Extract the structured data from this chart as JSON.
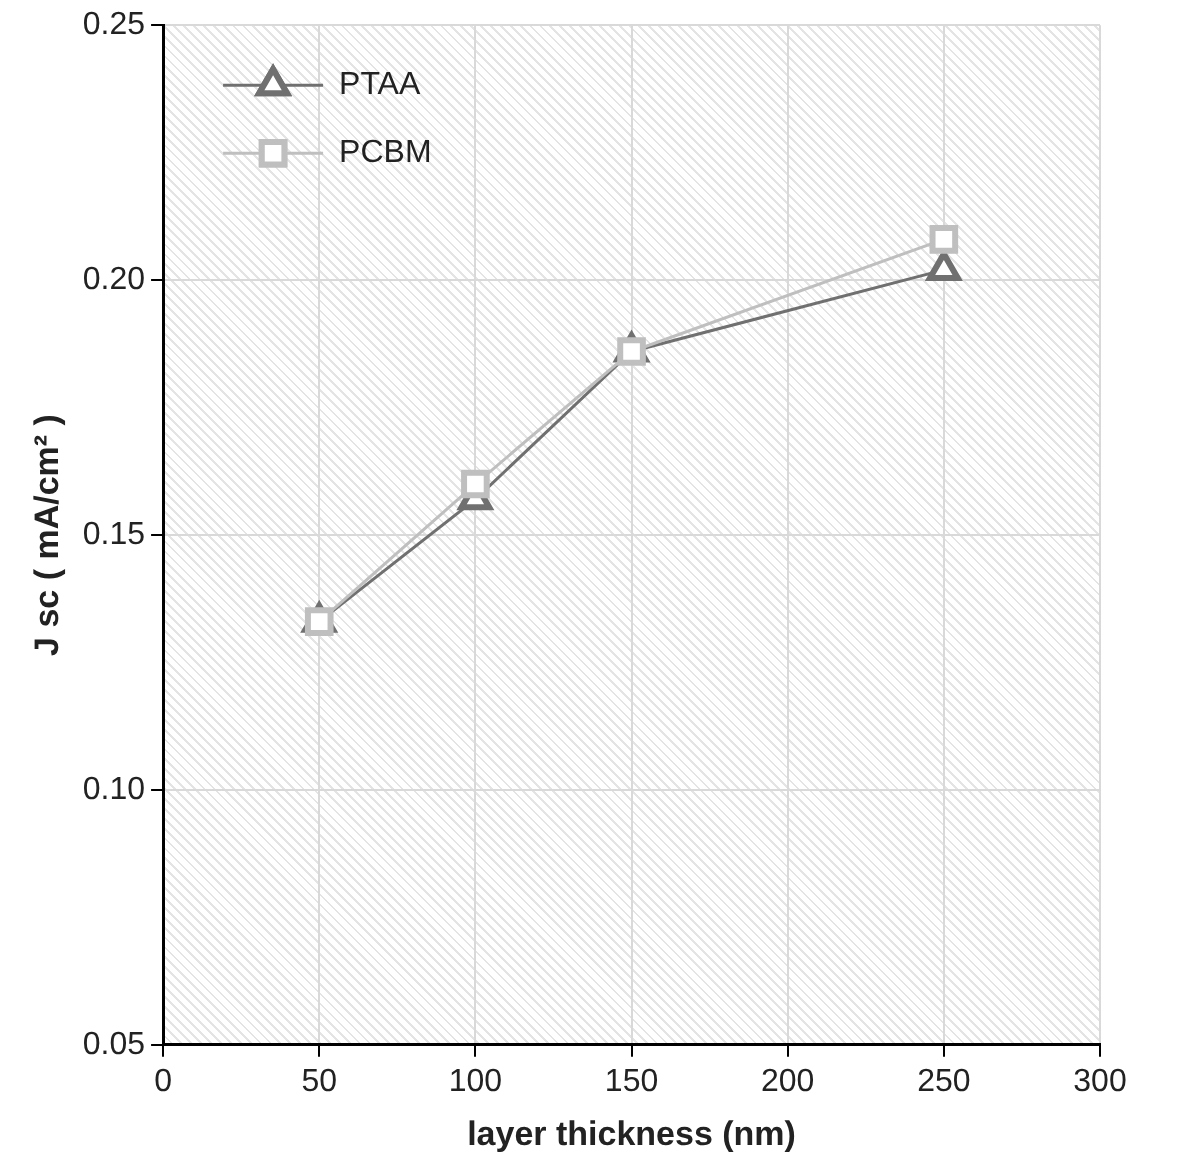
{
  "chart_data": {
    "type": "line",
    "xlabel": "layer thickness (nm)",
    "ylabel": "J sc ( mA/cm² )",
    "x": [
      50,
      100,
      150,
      250
    ],
    "series": [
      {
        "name": "PTAA",
        "color": "#707070",
        "marker": "triangle",
        "values": [
          0.133,
          0.157,
          0.186,
          0.202
        ]
      },
      {
        "name": "PCBM",
        "color": "#bfbfbf",
        "marker": "square",
        "values": [
          0.133,
          0.16,
          0.186,
          0.208
        ]
      }
    ],
    "xlim": [
      0,
      300
    ],
    "xticks": [
      0,
      50,
      100,
      150,
      200,
      250,
      300
    ],
    "ylim": [
      0.05,
      0.25
    ],
    "yticks": [
      {
        "value": 0.05,
        "label": "0.05"
      },
      {
        "value": 0.1,
        "label": "0.10"
      },
      {
        "value": 0.15,
        "label": "0.15"
      },
      {
        "value": 0.2,
        "label": "0.20"
      },
      {
        "value": 0.25,
        "label": "0.25"
      }
    ],
    "grid": true,
    "legend": "top left"
  }
}
